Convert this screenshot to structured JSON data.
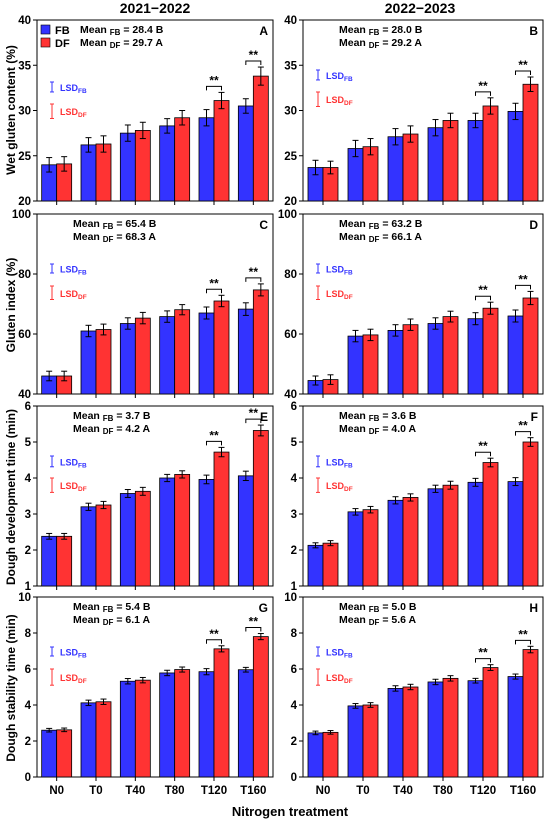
{
  "column_titles": [
    "2021−2022",
    "2022−2023"
  ],
  "x_axis_label": "Nitrogen treatment",
  "legend": [
    {
      "label": "FB",
      "color": "#3333ff"
    },
    {
      "label": "DF",
      "color": "#ff3333"
    }
  ],
  "colors": {
    "FB": "#3333ff",
    "DF": "#ff3333",
    "axis": "#000000"
  },
  "lsd_labels": {
    "fb_main": "LSD",
    "fb_sub": "FB",
    "df_main": "LSD",
    "df_sub": "DF"
  },
  "significance_marker": "**",
  "chart_data": [
    {
      "type": "bar",
      "panel": "A",
      "title": "2021−2022",
      "ylabel": "Wet gluten content (%)",
      "ylim": [
        20,
        40
      ],
      "yticks": [
        20,
        25,
        30,
        35,
        40
      ],
      "categories": [
        "N0",
        "T0",
        "T40",
        "T80",
        "T120",
        "T160"
      ],
      "series": [
        {
          "name": "FB",
          "values": [
            24.0,
            26.2,
            27.5,
            28.3,
            29.2,
            30.5
          ],
          "errors": [
            0.8,
            0.8,
            0.9,
            0.8,
            0.9,
            0.8
          ]
        },
        {
          "name": "DF",
          "values": [
            24.1,
            26.3,
            27.8,
            29.2,
            31.1,
            33.8
          ],
          "errors": [
            0.8,
            0.9,
            0.9,
            0.8,
            0.9,
            1.0
          ]
        }
      ],
      "significant": [
        "T120",
        "T160"
      ],
      "mean_lines": [
        {
          "main": "Mean ",
          "sub": "FB",
          "value": " = 28.4 B"
        },
        {
          "main": "Mean ",
          "sub": "DF",
          "value": " = 29.7 A"
        }
      ],
      "lsd": {
        "fb": 1.1,
        "df": 1.6
      }
    },
    {
      "type": "bar",
      "panel": "B",
      "title": "2022−2023",
      "ylabel": "",
      "ylim": [
        20,
        40
      ],
      "yticks": [
        20,
        25,
        30,
        35,
        40
      ],
      "categories": [
        "N0",
        "T0",
        "T40",
        "T80",
        "T120",
        "T160"
      ],
      "series": [
        {
          "name": "FB",
          "values": [
            23.7,
            25.8,
            27.1,
            28.1,
            28.9,
            29.9
          ],
          "errors": [
            0.8,
            0.9,
            0.9,
            0.9,
            0.8,
            0.9
          ]
        },
        {
          "name": "DF",
          "values": [
            23.7,
            26.0,
            27.4,
            28.9,
            30.5,
            32.9
          ],
          "errors": [
            0.7,
            0.9,
            0.9,
            0.8,
            0.9,
            0.8
          ]
        }
      ],
      "significant": [
        "T120",
        "T160"
      ],
      "mean_lines": [
        {
          "main": "Mean ",
          "sub": "FB",
          "value": " = 28.0 B"
        },
        {
          "main": "Mean ",
          "sub": "DF",
          "value": " = 29.2 A"
        }
      ],
      "lsd": {
        "fb": 1.1,
        "df": 1.6
      }
    },
    {
      "type": "bar",
      "panel": "C",
      "title": "",
      "ylabel": "Gluten index (%)",
      "ylim": [
        40,
        100
      ],
      "yticks": [
        40,
        60,
        80,
        100
      ],
      "categories": [
        "N0",
        "T0",
        "T40",
        "T80",
        "T120",
        "T160"
      ],
      "series": [
        {
          "name": "FB",
          "values": [
            46.0,
            61.0,
            63.5,
            65.8,
            67.0,
            68.3
          ],
          "errors": [
            1.6,
            1.9,
            1.9,
            1.9,
            2.0,
            2.1
          ]
        },
        {
          "name": "DF",
          "values": [
            46.0,
            61.5,
            65.3,
            68.1,
            71.0,
            74.7
          ],
          "errors": [
            1.6,
            1.8,
            1.9,
            1.7,
            1.9,
            2.0
          ]
        }
      ],
      "significant": [
        "T120",
        "T160"
      ],
      "mean_lines": [
        {
          "main": "Mean ",
          "sub": "FB",
          "value": " = 65.4 B"
        },
        {
          "main": "Mean ",
          "sub": "DF",
          "value": " = 68.3 A"
        }
      ],
      "lsd": {
        "fb": 3.0,
        "df": 4.5
      }
    },
    {
      "type": "bar",
      "panel": "D",
      "title": "",
      "ylabel": "",
      "ylim": [
        40,
        100
      ],
      "yticks": [
        40,
        60,
        80,
        100
      ],
      "categories": [
        "N0",
        "T0",
        "T40",
        "T80",
        "T120",
        "T160"
      ],
      "series": [
        {
          "name": "FB",
          "values": [
            44.5,
            59.3,
            61.2,
            63.5,
            65.1,
            66.0
          ],
          "errors": [
            1.5,
            1.9,
            1.9,
            1.9,
            2.0,
            2.0
          ]
        },
        {
          "name": "DF",
          "values": [
            44.8,
            59.7,
            63.1,
            65.8,
            68.6,
            72.0
          ],
          "errors": [
            1.6,
            1.9,
            1.9,
            1.8,
            2.0,
            2.2
          ]
        }
      ],
      "significant": [
        "T120",
        "T160"
      ],
      "mean_lines": [
        {
          "main": "Mean ",
          "sub": "FB",
          "value": " = 63.2 B"
        },
        {
          "main": "Mean ",
          "sub": "DF",
          "value": " = 66.1 A"
        }
      ],
      "lsd": {
        "fb": 3.0,
        "df": 4.5
      }
    },
    {
      "type": "bar",
      "panel": "E",
      "title": "",
      "ylabel": "Dough development time (min)",
      "ylim": [
        1,
        6
      ],
      "yticks": [
        1,
        2,
        3,
        4,
        5,
        6
      ],
      "categories": [
        "N0",
        "T0",
        "T40",
        "T80",
        "T120",
        "T160"
      ],
      "series": [
        {
          "name": "FB",
          "values": [
            2.38,
            3.2,
            3.57,
            4.0,
            3.96,
            4.06
          ],
          "errors": [
            0.08,
            0.1,
            0.11,
            0.1,
            0.12,
            0.13
          ]
        },
        {
          "name": "DF",
          "values": [
            2.38,
            3.25,
            3.63,
            4.1,
            4.72,
            5.32
          ],
          "errors": [
            0.08,
            0.1,
            0.11,
            0.1,
            0.13,
            0.15
          ]
        }
      ],
      "significant": [
        "T120",
        "T160"
      ],
      "mean_lines": [
        {
          "main": "Mean ",
          "sub": "FB",
          "value": " = 3.7 B"
        },
        {
          "main": "Mean ",
          "sub": "DF",
          "value": " = 4.2 A"
        }
      ],
      "lsd": {
        "fb": 0.3,
        "df": 0.4
      }
    },
    {
      "type": "bar",
      "panel": "F",
      "title": "",
      "ylabel": "",
      "ylim": [
        1,
        6
      ],
      "yticks": [
        1,
        2,
        3,
        4,
        5,
        6
      ],
      "categories": [
        "N0",
        "T0",
        "T40",
        "T80",
        "T120",
        "T160"
      ],
      "series": [
        {
          "name": "FB",
          "values": [
            2.13,
            3.06,
            3.38,
            3.7,
            3.88,
            3.9
          ],
          "errors": [
            0.07,
            0.09,
            0.1,
            0.1,
            0.11,
            0.11
          ]
        },
        {
          "name": "DF",
          "values": [
            2.19,
            3.12,
            3.46,
            3.8,
            4.43,
            5.0
          ],
          "errors": [
            0.07,
            0.09,
            0.1,
            0.11,
            0.12,
            0.12
          ]
        }
      ],
      "significant": [
        "T120",
        "T160"
      ],
      "mean_lines": [
        {
          "main": "Mean ",
          "sub": "FB",
          "value": " = 3.6 B"
        },
        {
          "main": "Mean ",
          "sub": "DF",
          "value": " = 4.0 A"
        }
      ],
      "lsd": {
        "fb": 0.3,
        "df": 0.4
      }
    },
    {
      "type": "bar",
      "panel": "G",
      "title": "",
      "ylabel": "Dough stability time (min)",
      "ylim": [
        0,
        10
      ],
      "yticks": [
        0,
        2,
        4,
        6,
        8,
        10
      ],
      "categories": [
        "N0",
        "T0",
        "T40",
        "T80",
        "T120",
        "T160"
      ],
      "series": [
        {
          "name": "FB",
          "values": [
            2.6,
            4.12,
            5.32,
            5.78,
            5.85,
            5.96
          ],
          "errors": [
            0.1,
            0.15,
            0.15,
            0.15,
            0.17,
            0.13
          ]
        },
        {
          "name": "DF",
          "values": [
            2.62,
            4.18,
            5.38,
            5.97,
            7.12,
            7.8
          ],
          "errors": [
            0.1,
            0.15,
            0.15,
            0.14,
            0.17,
            0.17
          ]
        }
      ],
      "significant": [
        "T120",
        "T160"
      ],
      "mean_lines": [
        {
          "main": "Mean ",
          "sub": "FB",
          "value": " = 5.4 B"
        },
        {
          "main": "Mean ",
          "sub": "DF",
          "value": " = 6.1 A"
        }
      ],
      "lsd": {
        "fb": 0.5,
        "df": 0.9
      }
    },
    {
      "type": "bar",
      "panel": "H",
      "title": "",
      "ylabel": "",
      "ylim": [
        0,
        10
      ],
      "yticks": [
        0,
        2,
        4,
        6,
        8,
        10
      ],
      "categories": [
        "N0",
        "T0",
        "T40",
        "T80",
        "T120",
        "T160"
      ],
      "series": [
        {
          "name": "FB",
          "values": [
            2.45,
            3.95,
            4.92,
            5.28,
            5.35,
            5.58
          ],
          "errors": [
            0.1,
            0.13,
            0.15,
            0.15,
            0.13,
            0.14
          ]
        },
        {
          "name": "DF",
          "values": [
            2.48,
            4.0,
            5.0,
            5.48,
            6.08,
            7.08
          ],
          "errors": [
            0.1,
            0.13,
            0.15,
            0.15,
            0.16,
            0.18
          ]
        }
      ],
      "significant": [
        "T120",
        "T160"
      ],
      "mean_lines": [
        {
          "main": "Mean ",
          "sub": "FB",
          "value": " = 5.0 B"
        },
        {
          "main": "Mean ",
          "sub": "DF",
          "value": " = 5.6 A"
        }
      ],
      "lsd": {
        "fb": 0.5,
        "df": 0.9
      }
    }
  ]
}
